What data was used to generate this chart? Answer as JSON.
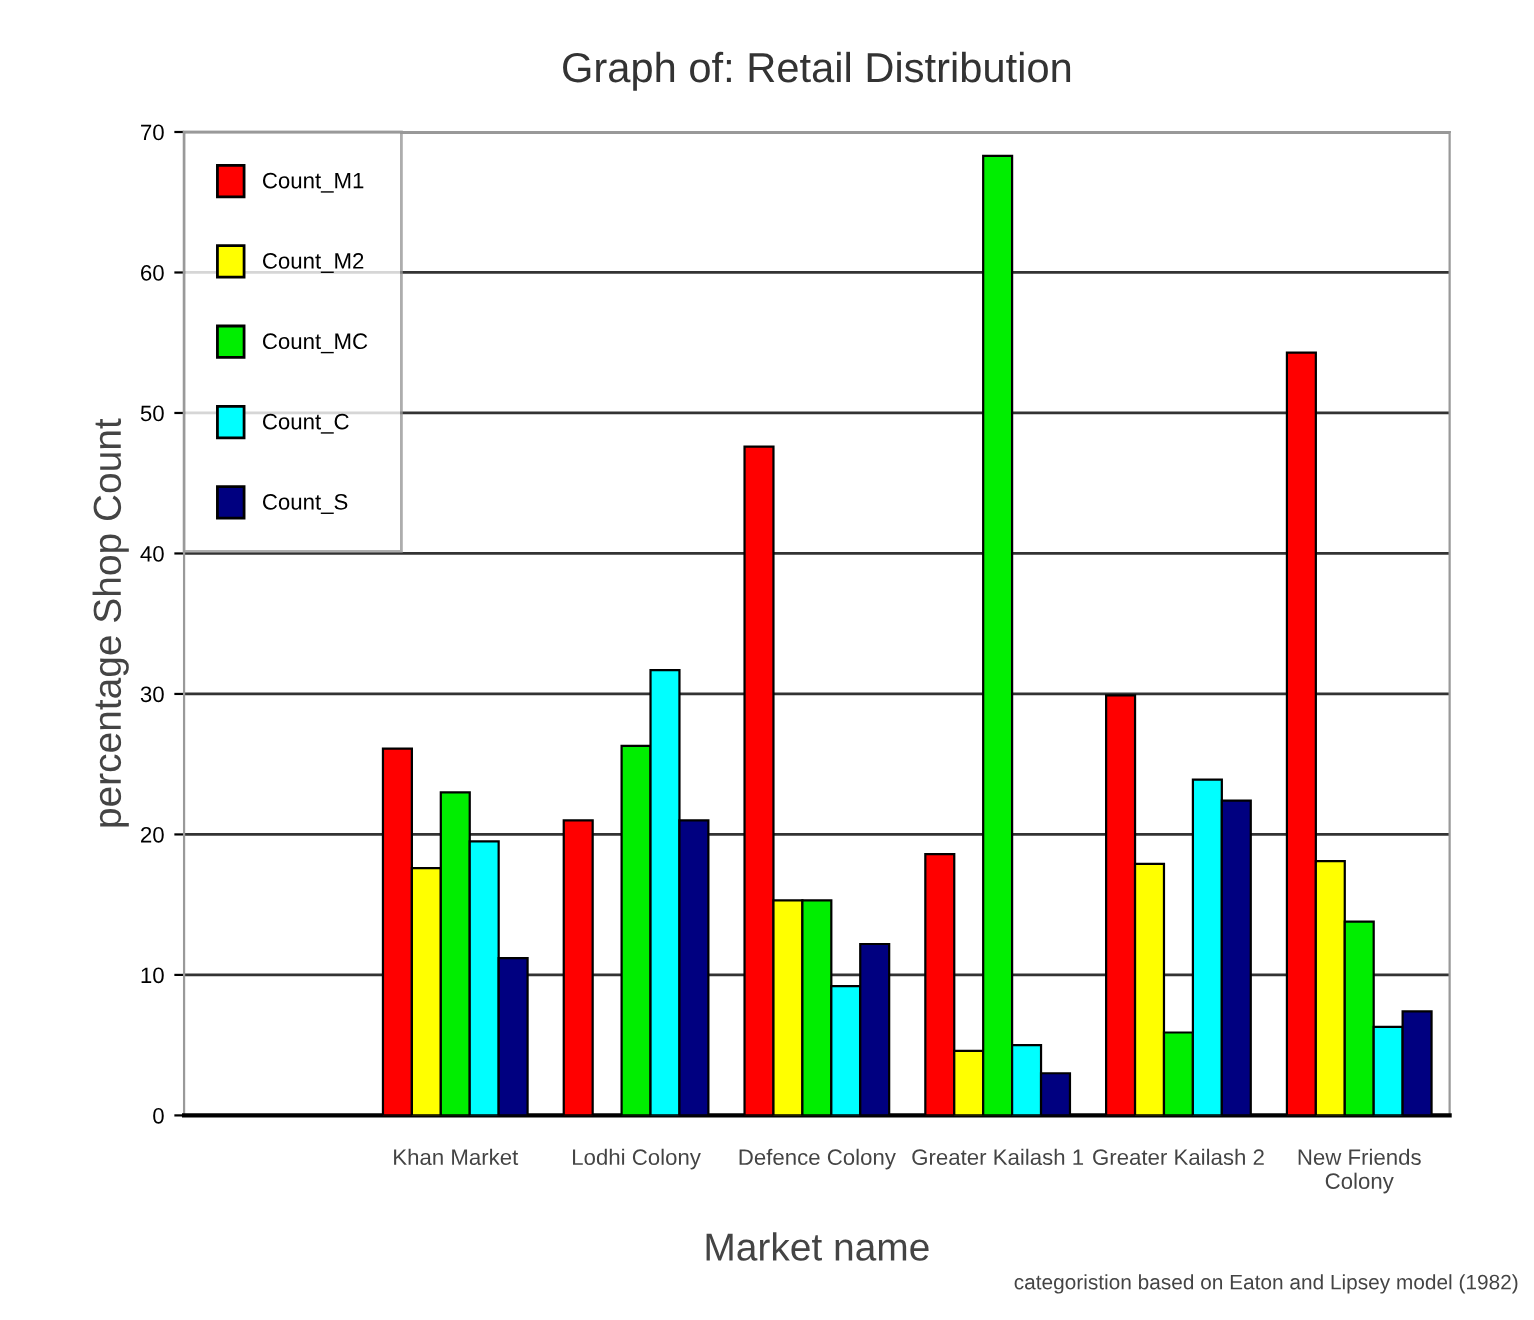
{
  "chart_data": {
    "type": "bar",
    "title": "Graph of: Retail Distribution",
    "xlabel": "Market name",
    "ylabel": "percentage Shop Count",
    "categories": [
      null,
      "Khan Market",
      "Lodhi Colony",
      "Defence Colony",
      "Greater Kailash 1",
      "Greater Kailash 2",
      "New Friends\nColony"
    ],
    "series": [
      {
        "name": "Count_M1",
        "color": "#ff0000",
        "values": [
          null,
          26.1,
          21.0,
          47.6,
          18.6,
          29.9,
          54.3
        ]
      },
      {
        "name": "Count_M2",
        "color": "#ffff00",
        "values": [
          null,
          17.6,
          null,
          15.3,
          4.6,
          17.9,
          18.1
        ]
      },
      {
        "name": "Count_MC",
        "color": "#00ee00",
        "values": [
          null,
          23.0,
          26.3,
          15.3,
          68.3,
          5.9,
          13.8
        ]
      },
      {
        "name": "Count_C",
        "color": "#00ffff",
        "values": [
          null,
          19.5,
          31.7,
          9.2,
          5.0,
          23.9,
          6.3
        ]
      },
      {
        "name": "Count_S",
        "color": "#000080",
        "values": [
          null,
          11.2,
          21.0,
          12.2,
          3.0,
          22.4,
          7.4
        ]
      }
    ],
    "ylim": [
      0,
      70
    ],
    "yticks": [
      0,
      10,
      20,
      30,
      40,
      50,
      60,
      70
    ],
    "grid": "y",
    "legend": "top left",
    "annotations": [
      "categoristion based on Eaton and Lipsey model (1982)"
    ]
  }
}
